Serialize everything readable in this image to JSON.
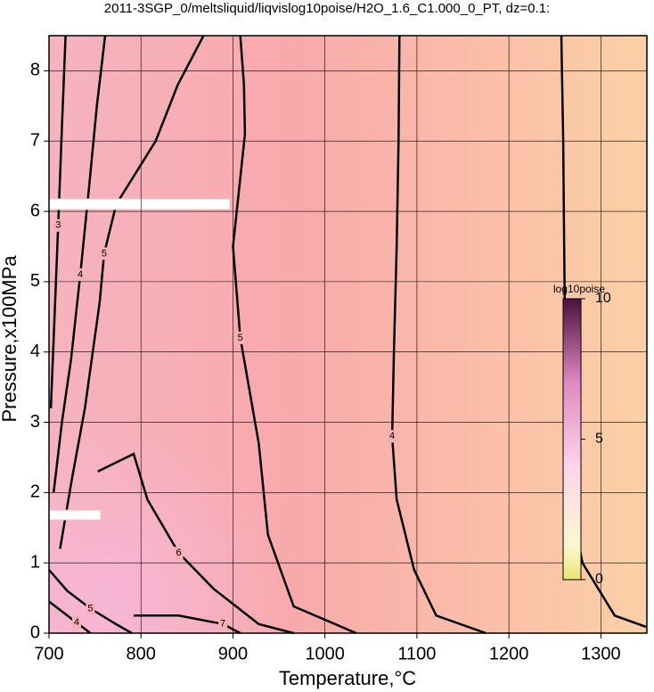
{
  "chart_data": {
    "type": "contour",
    "title": "2011-3SGP_0/meltsliquid/liqvislog10poise/H2O_1.6_C1.000_0_PT, dz=0.1:",
    "x_label": "Temperature,°C",
    "y_label": "Pressure,x100MPa",
    "xlim": [
      700,
      1350
    ],
    "xticks": [
      700,
      800,
      900,
      1000,
      1100,
      1200,
      1300
    ],
    "ylim": [
      0,
      8.5
    ],
    "yticks": [
      0,
      1,
      2,
      3,
      4,
      5,
      6,
      7,
      8
    ],
    "grid": true,
    "contours": [
      {
        "level": 3,
        "x": [
          1257,
          1259,
          1260,
          1262,
          1265,
          1280,
          1315,
          1349
        ],
        "y": [
          8.5,
          7,
          5.6,
          3,
          2,
          1,
          0.25,
          0.09
        ]
      },
      {
        "level": 4,
        "x": [
          1081,
          1080,
          1078,
          1075,
          1073,
          1078,
          1097,
          1121,
          1175
        ],
        "y": [
          8.5,
          7,
          5.5,
          4,
          2.8,
          1.9,
          0.9,
          0.25,
          0
        ]
      },
      {
        "level": 5,
        "x": [
          908,
          912,
          913,
          900,
          908,
          928,
          938,
          966,
          1034
        ],
        "y": [
          8.5,
          7.8,
          7.1,
          5.5,
          4.2,
          2.7,
          1.4,
          0.38,
          0
        ]
      },
      {
        "level": 5,
        "x": [
          868,
          840,
          816,
          773,
          760,
          755,
          739,
          725,
          712
        ],
        "y": [
          8.5,
          7.8,
          7,
          6.1,
          5.4,
          4.7,
          3.2,
          2.2,
          1.2
        ]
      },
      {
        "level": 6,
        "x": [
          753,
          792,
          807,
          841,
          879,
          928,
          966
        ],
        "y": [
          2.3,
          2.55,
          1.9,
          1.14,
          0.63,
          0.13,
          0
        ]
      },
      {
        "level": 7,
        "x": [
          792,
          841,
          889,
          908
        ],
        "y": [
          0.25,
          0.25,
          0.13,
          0
        ]
      },
      {
        "level": 4,
        "x": [
          761,
          752,
          744,
          734,
          724,
          714,
          705
        ],
        "y": [
          8.5,
          7.5,
          6.4,
          5.1,
          3.9,
          3,
          2
        ]
      },
      {
        "level": 3,
        "x": [
          718,
          714,
          710,
          706,
          702
        ],
        "y": [
          8.5,
          7.2,
          5.8,
          4.5,
          3.2
        ]
      },
      {
        "level": 5,
        "x": [
          700,
          720,
          745,
          770,
          790
        ],
        "y": [
          0.9,
          0.6,
          0.35,
          0.15,
          0
        ]
      },
      {
        "level": 4,
        "x": [
          700,
          715,
          730,
          745
        ],
        "y": [
          0.45,
          0.3,
          0.15,
          0
        ]
      }
    ],
    "colorbar": {
      "label": "log10poise",
      "lim": [
        0,
        10
      ],
      "ticks": [
        0,
        5,
        10
      ]
    }
  }
}
